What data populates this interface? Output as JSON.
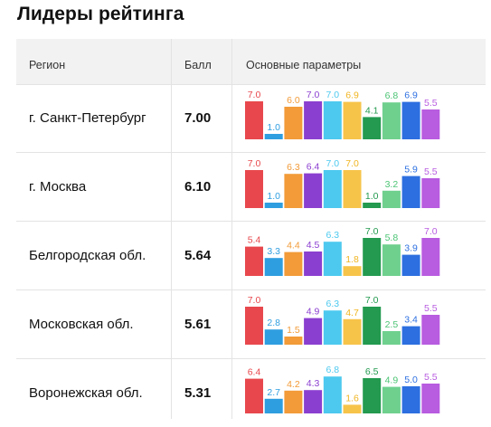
{
  "title": "Лидеры рейтинга",
  "headers": {
    "region": "Регион",
    "score": "Балл",
    "params": "Основные параметры"
  },
  "colors": [
    "#e8484d",
    "#2f9ee0",
    "#f29b38",
    "#8b3fd0",
    "#4dc9ef",
    "#f7c44a",
    "#239a4f",
    "#6fd08e",
    "#2d6fe0",
    "#b85ce0"
  ],
  "label_colors": [
    "#e8484d",
    "#2f9ee0",
    "#f29b38",
    "#8b3fd0",
    "#4dc9ef",
    "#f0b520",
    "#239a4f",
    "#4cc474",
    "#2d6fe0",
    "#b85ce0"
  ],
  "chart_data": {
    "type": "bar",
    "categories": [
      "г. Санкт-Петербург",
      "г. Москва",
      "Белгородская обл.",
      "Московская обл.",
      "Воронежская обл."
    ],
    "scores": [
      "7.00",
      "6.10",
      "5.64",
      "5.61",
      "5.31"
    ],
    "series_per_row": [
      [
        7.0,
        1.0,
        6.0,
        7.0,
        7.0,
        6.9,
        4.1,
        6.8,
        6.9,
        5.5
      ],
      [
        7.0,
        1.0,
        6.3,
        6.4,
        7.0,
        7.0,
        1.0,
        3.2,
        5.9,
        5.5
      ],
      [
        5.4,
        3.3,
        4.4,
        4.5,
        6.3,
        1.8,
        7.0,
        5.8,
        3.9,
        7.0
      ],
      [
        7.0,
        2.8,
        1.5,
        4.9,
        6.3,
        4.7,
        7.0,
        2.5,
        3.4,
        5.5
      ],
      [
        6.4,
        2.7,
        4.2,
        4.3,
        6.8,
        1.6,
        6.5,
        4.9,
        5.0,
        5.5
      ]
    ],
    "value_labels": [
      [
        "7.0",
        "1.0",
        "6.0",
        "7.0",
        "7.0",
        "6.9",
        "4.1",
        "6.8",
        "6.9",
        "5.5"
      ],
      [
        "7.0",
        "1.0",
        "6.3",
        "6.4",
        "7.0",
        "7.0",
        "1.0",
        "3.2",
        "5.9",
        "5.5"
      ],
      [
        "5.4",
        "3.3",
        "4.4",
        "4.5",
        "6.3",
        "1.8",
        "7.0",
        "5.8",
        "3.9",
        "7.0"
      ],
      [
        "7.0",
        "2.8",
        "1.5",
        "4.9",
        "6.3",
        "4.7",
        "7.0",
        "2.5",
        "3.4",
        "5.5"
      ],
      [
        "6.4",
        "2.7",
        "4.2",
        "4.3",
        "6.8",
        "1.6",
        "6.5",
        "4.9",
        "5.0",
        "5.5"
      ]
    ],
    "ylim": [
      0,
      7
    ]
  }
}
